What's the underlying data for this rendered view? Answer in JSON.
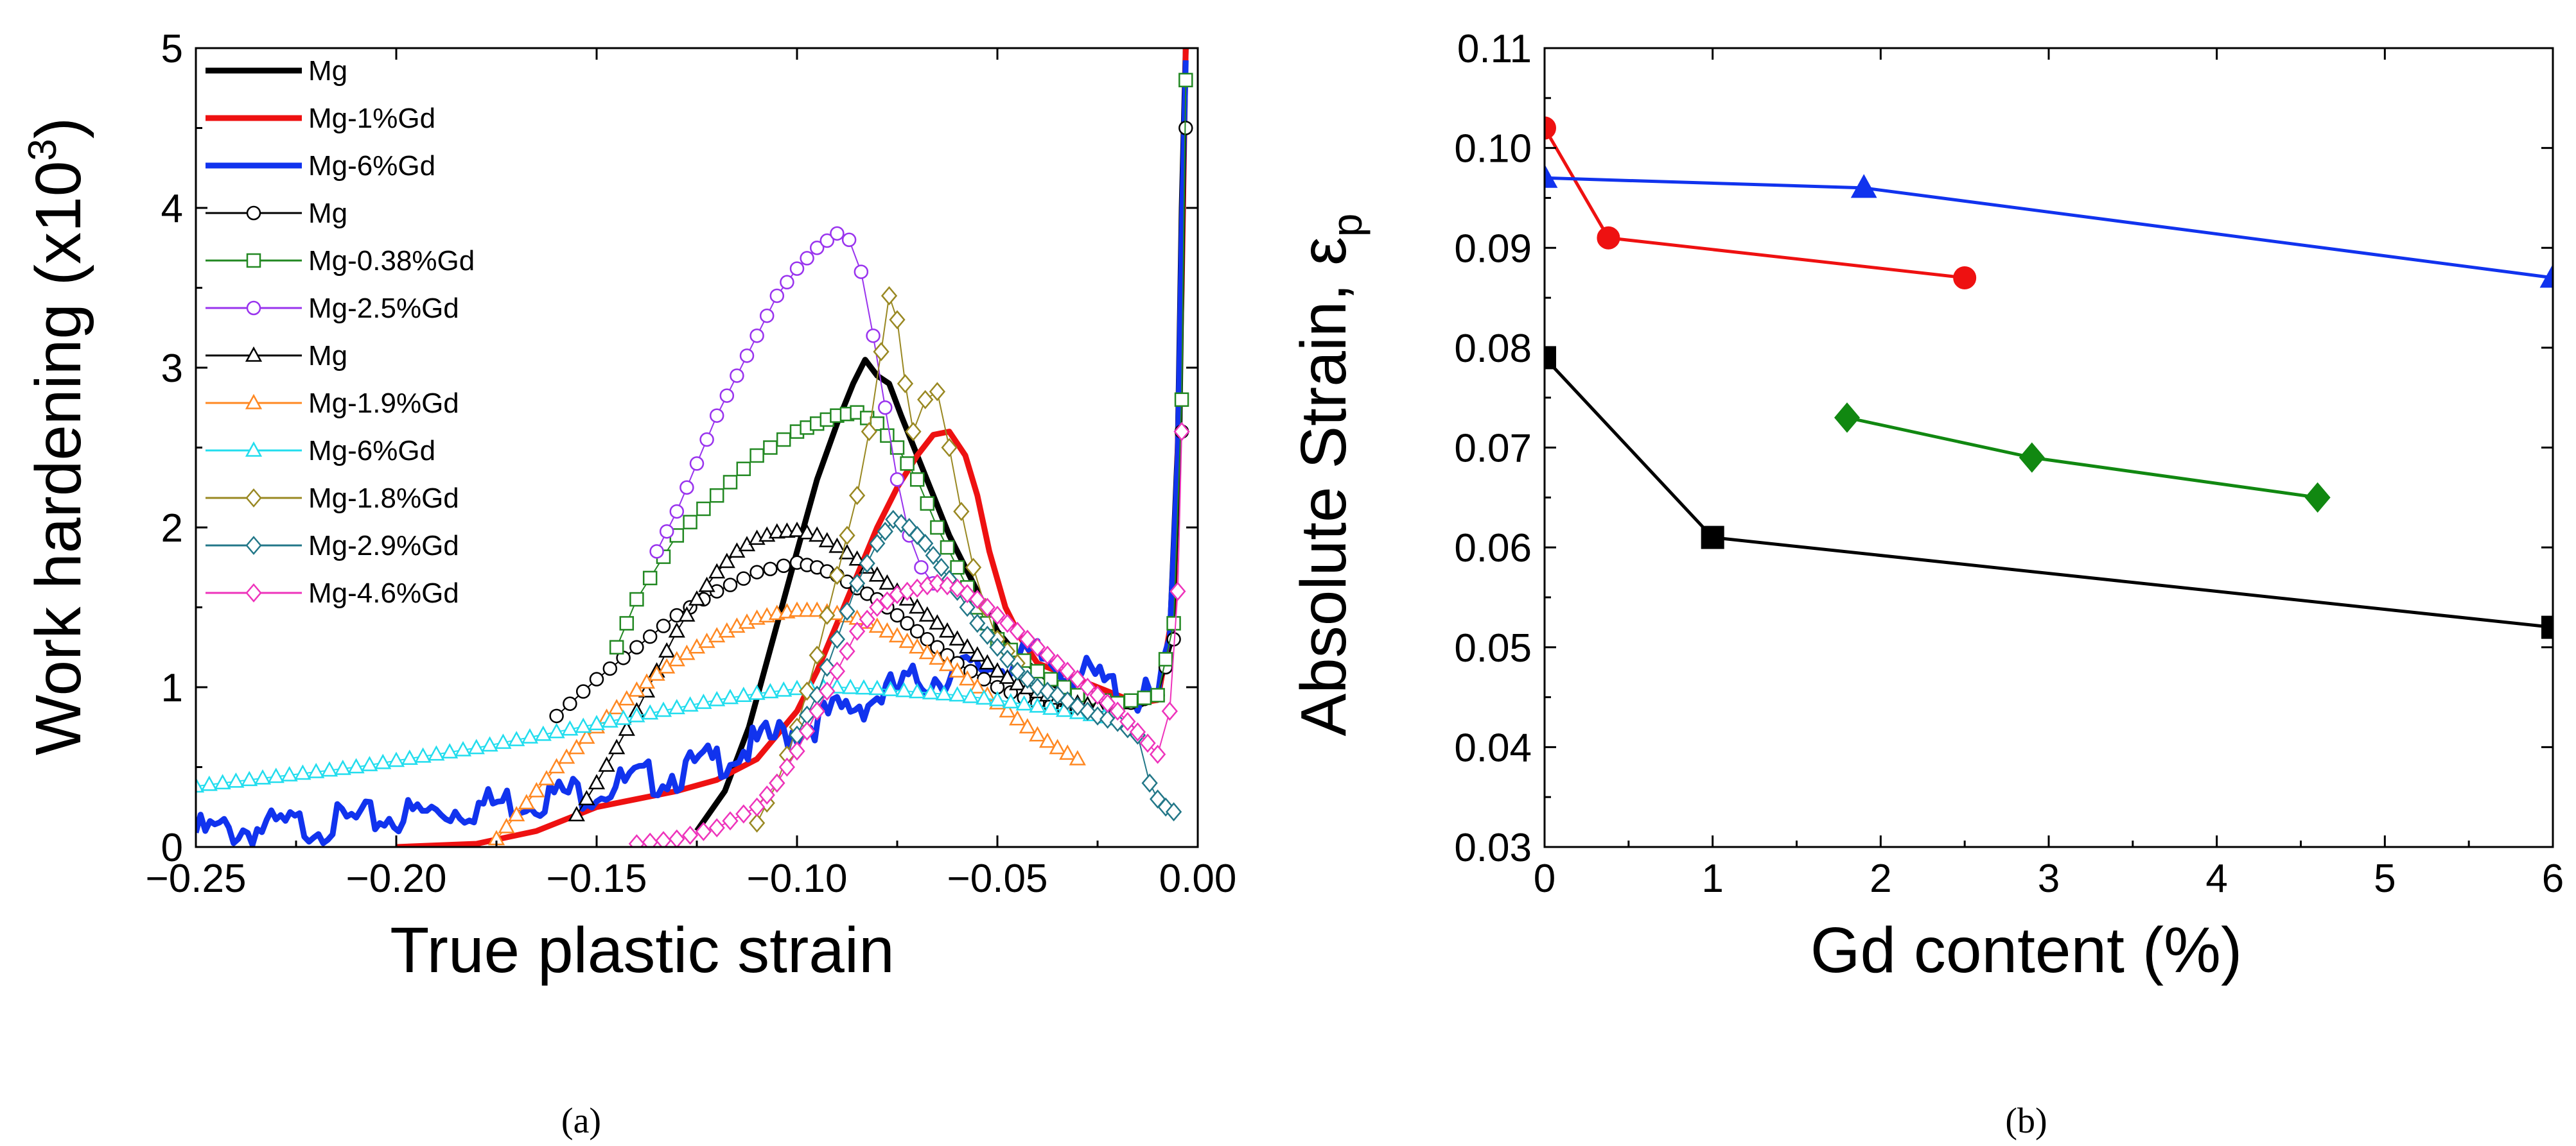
{
  "chart_data": [
    {
      "type": "line",
      "panel": "a",
      "caption": "(a)",
      "xlabel": "True plastic strain",
      "ylabel": "Work hardening (x10",
      "ylabel_sup": "3",
      "ylabel_close": ")",
      "xlim": [
        -0.25,
        0.0
      ],
      "ylim": [
        0,
        5
      ],
      "xticks": [
        -0.25,
        -0.2,
        -0.15,
        -0.1,
        -0.05,
        0.0
      ],
      "xtick_labels": [
        "−0.25",
        "−0.20",
        "−0.15",
        "−0.10",
        "−0.05",
        "0.00"
      ],
      "yticks": [
        0,
        1,
        2,
        3,
        4,
        5
      ],
      "ytick_labels": [
        "0",
        "1",
        "2",
        "3",
        "4",
        "5"
      ],
      "legend_position": "top-left",
      "series": [
        {
          "name": "Mg",
          "color": "#000000",
          "marker": "none",
          "width": 9,
          "x": [
            -0.125,
            -0.118,
            -0.112,
            -0.106,
            -0.1,
            -0.095,
            -0.09,
            -0.086,
            -0.083,
            -0.08,
            -0.077,
            -0.074,
            -0.07,
            -0.066,
            -0.062,
            -0.058,
            -0.054,
            -0.05,
            -0.045,
            -0.04,
            -0.035,
            -0.03,
            -0.025,
            -0.02,
            -0.015,
            -0.01,
            -0.007,
            -0.005,
            -0.004,
            -0.003
          ],
          "y": [
            0.1,
            0.35,
            0.75,
            1.3,
            1.85,
            2.3,
            2.65,
            2.9,
            3.05,
            2.95,
            2.9,
            2.7,
            2.45,
            2.2,
            1.95,
            1.75,
            1.55,
            1.35,
            1.2,
            1.1,
            1.0,
            0.95,
            0.9,
            0.88,
            0.88,
            0.95,
            1.3,
            2.5,
            4.0,
            5.0
          ]
        },
        {
          "name": "Mg-1%Gd",
          "color": "#ee1111",
          "marker": "none",
          "width": 9,
          "x": [
            -0.2,
            -0.18,
            -0.165,
            -0.15,
            -0.14,
            -0.13,
            -0.12,
            -0.11,
            -0.1,
            -0.095,
            -0.09,
            -0.085,
            -0.08,
            -0.075,
            -0.07,
            -0.066,
            -0.062,
            -0.058,
            -0.055,
            -0.052,
            -0.048,
            -0.044,
            -0.04,
            -0.035,
            -0.03,
            -0.025,
            -0.02,
            -0.015,
            -0.01,
            -0.006,
            -0.004,
            -0.003
          ],
          "y": [
            0.0,
            0.02,
            0.1,
            0.25,
            0.3,
            0.35,
            0.42,
            0.55,
            0.85,
            1.1,
            1.4,
            1.7,
            2.0,
            2.25,
            2.45,
            2.58,
            2.6,
            2.45,
            2.2,
            1.85,
            1.5,
            1.3,
            1.15,
            1.1,
            1.05,
            1.0,
            0.95,
            0.9,
            0.92,
            1.5,
            3.5,
            5.0
          ]
        },
        {
          "name": "Mg-6%Gd",
          "color": "#1133ee",
          "marker": "none",
          "width": 9,
          "noise": 0.06,
          "x": [
            -0.25,
            -0.23,
            -0.21,
            -0.19,
            -0.17,
            -0.15,
            -0.13,
            -0.12,
            -0.11,
            -0.1,
            -0.09,
            -0.08,
            -0.07,
            -0.06,
            -0.05,
            -0.04,
            -0.03,
            -0.02,
            -0.015,
            -0.01,
            -0.007,
            -0.005,
            -0.004,
            -0.003
          ],
          "y": [
            0.15,
            0.18,
            0.22,
            0.28,
            0.35,
            0.42,
            0.52,
            0.6,
            0.7,
            0.8,
            0.9,
            1.0,
            1.1,
            1.15,
            1.2,
            1.25,
            1.15,
            1.05,
            1.0,
            0.98,
            1.3,
            2.5,
            4.0,
            5.0
          ]
        },
        {
          "name": "Mg",
          "color": "#000000",
          "marker": "circle",
          "width": 2,
          "x": [
            -0.16,
            -0.15,
            -0.14,
            -0.13,
            -0.12,
            -0.11,
            -0.1,
            -0.095,
            -0.09,
            -0.085,
            -0.08,
            -0.075,
            -0.07,
            -0.065,
            -0.06,
            -0.05,
            -0.04,
            -0.03,
            -0.02,
            -0.01,
            -0.006,
            -0.004,
            -0.003
          ],
          "y": [
            0.82,
            1.05,
            1.25,
            1.45,
            1.6,
            1.72,
            1.78,
            1.75,
            1.7,
            1.62,
            1.55,
            1.45,
            1.35,
            1.25,
            1.15,
            1.0,
            0.9,
            0.85,
            0.88,
            0.95,
            1.3,
            2.6,
            4.5
          ]
        },
        {
          "name": "Mg-0.38%Gd",
          "color": "#228822",
          "marker": "square",
          "width": 2,
          "x": [
            -0.145,
            -0.14,
            -0.13,
            -0.12,
            -0.11,
            -0.1,
            -0.095,
            -0.09,
            -0.085,
            -0.08,
            -0.075,
            -0.07,
            -0.065,
            -0.06,
            -0.055,
            -0.05,
            -0.04,
            -0.03,
            -0.02,
            -0.01,
            -0.006,
            -0.004,
            -0.003
          ],
          "y": [
            1.25,
            1.55,
            1.95,
            2.2,
            2.45,
            2.6,
            2.65,
            2.7,
            2.72,
            2.65,
            2.5,
            2.3,
            2.0,
            1.75,
            1.5,
            1.3,
            1.1,
            0.95,
            0.9,
            0.95,
            1.4,
            2.8,
            4.8
          ]
        },
        {
          "name": "Mg-2.5%Gd",
          "color": "#9933ee",
          "marker": "circle",
          "width": 2,
          "x": [
            -0.135,
            -0.13,
            -0.125,
            -0.12,
            -0.115,
            -0.11,
            -0.105,
            -0.1,
            -0.095,
            -0.09,
            -0.087,
            -0.084,
            -0.081,
            -0.078,
            -0.075,
            -0.072,
            -0.069,
            -0.066
          ],
          "y": [
            1.85,
            2.1,
            2.4,
            2.7,
            2.95,
            3.2,
            3.45,
            3.62,
            3.75,
            3.84,
            3.8,
            3.6,
            3.2,
            2.75,
            2.3,
            1.95,
            1.75,
            1.65
          ]
        },
        {
          "name": "Mg",
          "color": "#000000",
          "marker": "triangle",
          "width": 2,
          "x": [
            -0.155,
            -0.15,
            -0.145,
            -0.14,
            -0.135,
            -0.13,
            -0.125,
            -0.12,
            -0.115,
            -0.11,
            -0.105,
            -0.1,
            -0.095,
            -0.09,
            -0.085,
            -0.08,
            -0.075,
            -0.07,
            -0.065,
            -0.06,
            -0.055,
            -0.05,
            -0.045,
            -0.04,
            -0.035,
            -0.03,
            -0.025
          ],
          "y": [
            0.2,
            0.4,
            0.62,
            0.85,
            1.1,
            1.35,
            1.55,
            1.72,
            1.85,
            1.93,
            1.97,
            1.98,
            1.95,
            1.88,
            1.8,
            1.7,
            1.6,
            1.5,
            1.4,
            1.3,
            1.2,
            1.1,
            1.02,
            0.97,
            0.93,
            0.9,
            0.88
          ]
        },
        {
          "name": "Mg-1.9%Gd",
          "color": "#ff8822",
          "marker": "triangle",
          "width": 2,
          "x": [
            -0.175,
            -0.17,
            -0.165,
            -0.16,
            -0.155,
            -0.15,
            -0.145,
            -0.14,
            -0.135,
            -0.13,
            -0.125,
            -0.12,
            -0.115,
            -0.11,
            -0.105,
            -0.1,
            -0.095,
            -0.09,
            -0.085,
            -0.08,
            -0.075,
            -0.07,
            -0.065,
            -0.06,
            -0.055,
            -0.05,
            -0.045,
            -0.04,
            -0.035,
            -0.03
          ],
          "y": [
            0.05,
            0.2,
            0.35,
            0.5,
            0.62,
            0.75,
            0.87,
            0.98,
            1.08,
            1.17,
            1.25,
            1.32,
            1.38,
            1.43,
            1.46,
            1.48,
            1.48,
            1.46,
            1.43,
            1.38,
            1.32,
            1.25,
            1.18,
            1.1,
            1.0,
            0.9,
            0.8,
            0.7,
            0.62,
            0.55
          ]
        },
        {
          "name": "Mg-6%Gd",
          "color": "#22ddee",
          "marker": "triangle",
          "width": 2,
          "x": [
            -0.25,
            -0.24,
            -0.23,
            -0.22,
            -0.21,
            -0.2,
            -0.19,
            -0.18,
            -0.17,
            -0.16,
            -0.15,
            -0.14,
            -0.13,
            -0.12,
            -0.11,
            -0.1,
            -0.09,
            -0.08,
            -0.07,
            -0.06,
            -0.05,
            -0.04,
            -0.03,
            -0.02
          ],
          "y": [
            0.38,
            0.41,
            0.44,
            0.47,
            0.5,
            0.54,
            0.58,
            0.62,
            0.67,
            0.72,
            0.77,
            0.82,
            0.87,
            0.92,
            0.96,
            0.99,
            1.0,
            0.99,
            0.97,
            0.95,
            0.92,
            0.88,
            0.84,
            0.8
          ]
        },
        {
          "name": "Mg-1.8%Gd",
          "color": "#998822",
          "marker": "diamond",
          "width": 2,
          "x": [
            -0.11,
            -0.105,
            -0.1,
            -0.095,
            -0.09,
            -0.085,
            -0.082,
            -0.079,
            -0.077,
            -0.075,
            -0.073,
            -0.071,
            -0.068,
            -0.065,
            -0.062,
            -0.059,
            -0.056,
            -0.053,
            -0.05,
            -0.045
          ],
          "y": [
            0.15,
            0.4,
            0.75,
            1.2,
            1.7,
            2.2,
            2.6,
            3.1,
            3.45,
            3.3,
            2.9,
            2.6,
            2.8,
            2.85,
            2.5,
            2.1,
            1.75,
            1.5,
            1.3,
            1.15
          ]
        },
        {
          "name": "Mg-2.9%Gd",
          "color": "#227788",
          "marker": "diamond",
          "width": 2,
          "x": [
            -0.1,
            -0.095,
            -0.09,
            -0.085,
            -0.08,
            -0.076,
            -0.072,
            -0.068,
            -0.064,
            -0.06,
            -0.055,
            -0.05,
            -0.045,
            -0.04,
            -0.035,
            -0.03,
            -0.025,
            -0.02,
            -0.015,
            -0.012,
            -0.01,
            -0.008,
            -0.006
          ],
          "y": [
            0.7,
            0.95,
            1.3,
            1.65,
            1.9,
            2.05,
            2.0,
            1.9,
            1.75,
            1.6,
            1.4,
            1.25,
            1.1,
            1.0,
            0.95,
            0.88,
            0.82,
            0.78,
            0.7,
            0.4,
            0.3,
            0.25,
            0.22
          ]
        },
        {
          "name": "Mg-4.6%Gd",
          "color": "#ee33bb",
          "marker": "diamond",
          "width": 2,
          "x": [
            -0.14,
            -0.13,
            -0.12,
            -0.11,
            -0.105,
            -0.1,
            -0.095,
            -0.09,
            -0.085,
            -0.08,
            -0.075,
            -0.07,
            -0.065,
            -0.06,
            -0.055,
            -0.05,
            -0.045,
            -0.04,
            -0.035,
            -0.03,
            -0.025,
            -0.02,
            -0.015,
            -0.01,
            -0.007,
            -0.005,
            -0.004
          ],
          "y": [
            0.02,
            0.05,
            0.12,
            0.25,
            0.4,
            0.6,
            0.85,
            1.1,
            1.35,
            1.5,
            1.58,
            1.62,
            1.65,
            1.62,
            1.55,
            1.45,
            1.35,
            1.25,
            1.15,
            1.05,
            0.95,
            0.85,
            0.72,
            0.58,
            0.85,
            1.6,
            2.6
          ]
        }
      ]
    },
    {
      "type": "line",
      "panel": "b",
      "caption": "(b)",
      "xlabel": "Gd content (%)",
      "ylabel": "Absolute Strain, ε",
      "ylabel_sub": "p",
      "xlim": [
        0,
        6
      ],
      "ylim": [
        0.03,
        0.11
      ],
      "xticks": [
        0,
        1,
        2,
        3,
        4,
        5,
        6
      ],
      "xtick_labels": [
        "0",
        "1",
        "2",
        "3",
        "4",
        "5",
        "6"
      ],
      "yticks": [
        0.03,
        0.04,
        0.05,
        0.06,
        0.07,
        0.08,
        0.09,
        0.1,
        0.11
      ],
      "ytick_labels": [
        "0.03",
        "0.04",
        "0.05",
        "0.06",
        "0.07",
        "0.08",
        "0.09",
        "0.10",
        "0.11"
      ],
      "series": [
        {
          "name": "black",
          "color": "#000000",
          "marker": "square",
          "x": [
            0,
            1,
            6
          ],
          "y": [
            0.079,
            0.061,
            0.052
          ]
        },
        {
          "name": "red",
          "color": "#ee1111",
          "marker": "circle",
          "x": [
            0,
            0.38,
            2.5
          ],
          "y": [
            0.102,
            0.091,
            0.087
          ]
        },
        {
          "name": "blue",
          "color": "#1133ee",
          "marker": "triangle",
          "x": [
            0,
            1.9,
            6
          ],
          "y": [
            0.097,
            0.096,
            0.087
          ]
        },
        {
          "name": "green",
          "color": "#118811",
          "marker": "diamond",
          "x": [
            1.8,
            2.9,
            4.6
          ],
          "y": [
            0.073,
            0.069,
            0.065
          ]
        }
      ]
    }
  ]
}
